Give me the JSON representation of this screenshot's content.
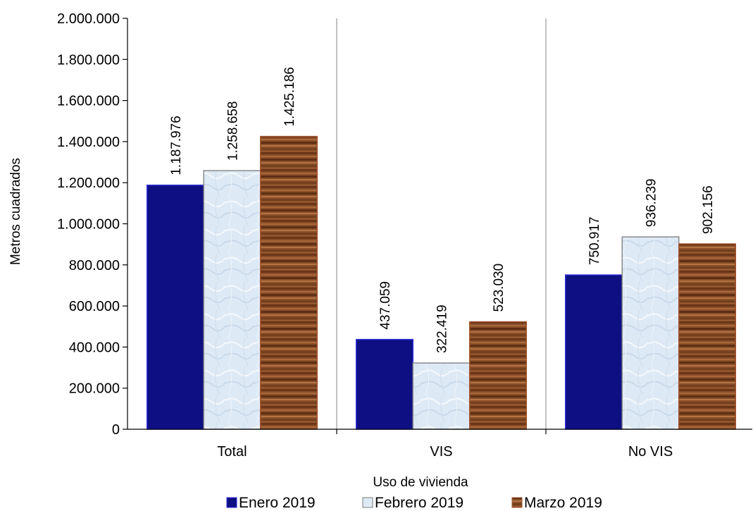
{
  "chart_data": {
    "type": "bar",
    "categories": [
      "Total",
      "VIS",
      "No VIS"
    ],
    "series": [
      {
        "name": "Enero 2019",
        "values": [
          1187976,
          437059,
          750917
        ],
        "labels": [
          "1.187.976",
          "437.059",
          "750.917"
        ],
        "color": "#0d0f82",
        "edge": "#2b2bd6",
        "pattern": "solid"
      },
      {
        "name": "Febrero 2019",
        "values": [
          1258658,
          322419,
          936239
        ],
        "labels": [
          "1.258.658",
          "322.419",
          "936.239"
        ],
        "color": "#dce8f4",
        "edge": "#8a8a8a",
        "pattern": "marble"
      },
      {
        "name": "Marzo 2019",
        "values": [
          1425186,
          523030,
          902156
        ],
        "labels": [
          "1.425.186",
          "523.030",
          "902.156"
        ],
        "color": "#8b4e26",
        "edge": "#a0522d",
        "pattern": "wood"
      }
    ],
    "yticks": [
      "0",
      "200.000",
      "400.000",
      "600.000",
      "800.000",
      "1.000.000",
      "1.200.000",
      "1.400.000",
      "1.600.000",
      "1.800.000",
      "2.000.000"
    ],
    "ylim": [
      0,
      2000000
    ],
    "xlabel": "Uso de vivienda",
    "ylabel": "Metros cuadrados",
    "legend_position": "bottom",
    "grid": false,
    "category_separators": true
  }
}
